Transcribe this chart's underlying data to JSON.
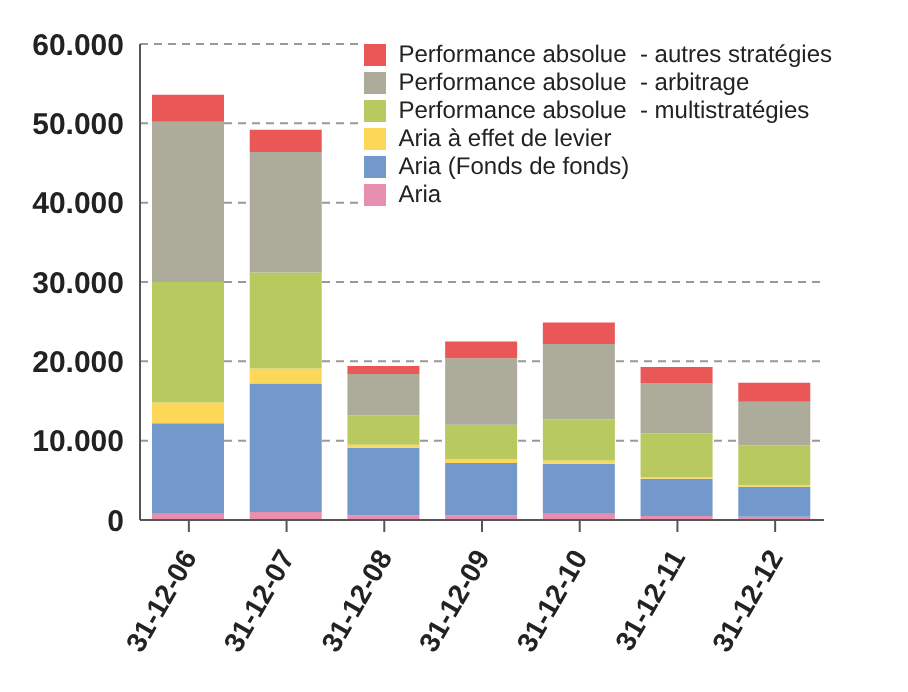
{
  "chart_data": {
    "type": "bar",
    "stacked": true,
    "categories": [
      "31-12-06",
      "31-12-07",
      "31-12-08",
      "31-12-09",
      "31-12-10",
      "31-12-11",
      "31-12-12"
    ],
    "series": [
      {
        "name": "Aria",
        "color": "#e88fb0",
        "values": [
          800,
          1000,
          600,
          600,
          800,
          500,
          400
        ]
      },
      {
        "name": "Aria (Fonds de fonds)",
        "color": "#7399cc",
        "values": [
          11400,
          16200,
          8500,
          6600,
          6300,
          4700,
          3800
        ]
      },
      {
        "name": "Aria à effet de levier",
        "color": "#fcd758",
        "values": [
          2600,
          1900,
          400,
          500,
          400,
          200,
          200
        ]
      },
      {
        "name": "Performance absolue  - multistratégies",
        "color": "#b7c95f",
        "values": [
          15200,
          12100,
          3700,
          4300,
          5200,
          5500,
          5000
        ]
      },
      {
        "name": "Performance absolue  - arbitrage",
        "color": "#adab9a",
        "values": [
          20200,
          15200,
          5200,
          8400,
          9500,
          6300,
          5500
        ]
      },
      {
        "name": "Performance absolue  - autres stratégies",
        "color": "#e95757",
        "values": [
          3400,
          2800,
          1000,
          2100,
          2700,
          2100,
          2400
        ]
      }
    ],
    "ylim": [
      0,
      60000
    ],
    "yticks": [
      0,
      {
        "value": 10000,
        "label": "10.000"
      },
      {
        "value": 20000,
        "label": "20.000"
      },
      {
        "value": 30000,
        "label": "30.000"
      },
      {
        "value": 40000,
        "label": "40.000"
      },
      {
        "value": 50000,
        "label": "50.000"
      },
      {
        "value": 60000,
        "label": "60.000"
      }
    ],
    "grid": "y",
    "legend": "top right"
  }
}
